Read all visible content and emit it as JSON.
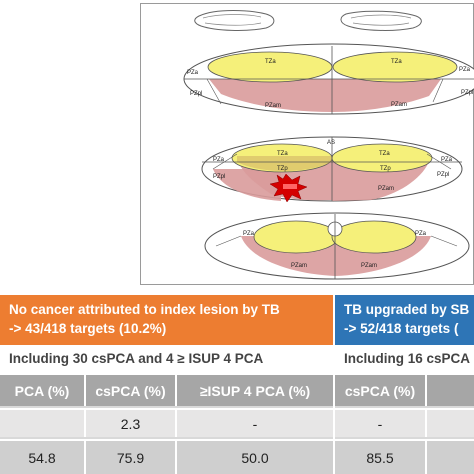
{
  "figure": {
    "labels": {
      "tza": "TZa",
      "pza": "PZa",
      "pzpl": "PZpl",
      "pzam": "PZam",
      "as": "AS"
    },
    "colors": {
      "transition_zone": "#f5f07a",
      "peripheral_lesion": "#d99b9b",
      "lesion_star": "#d40000",
      "outline": "#555555"
    }
  },
  "left_panel": {
    "header_line1": "No cancer attributed to index lesion by TB",
    "header_line2": "-> 43/418 targets (10.2%)",
    "subheader": "Including 30 csPCA and 4 ≥ ISUP 4 PCA",
    "columns": [
      "PCA (%)",
      "csPCA (%)",
      "≥ISUP 4 PCA (%)"
    ],
    "row_a": [
      "",
      "2.3",
      "-"
    ],
    "row_b": [
      "54.8",
      "75.9",
      "50.0"
    ],
    "color": "#ed7d31"
  },
  "right_panel": {
    "header_line1": "TB upgraded by SB",
    "header_line2": "-> 52/418 targets (",
    "subheader": "Including 16 csPCA",
    "columns": [
      "csPCA (%)",
      ""
    ],
    "row_a": [
      "-",
      ""
    ],
    "row_b": [
      "85.5",
      ""
    ],
    "color": "#2e75b6"
  }
}
